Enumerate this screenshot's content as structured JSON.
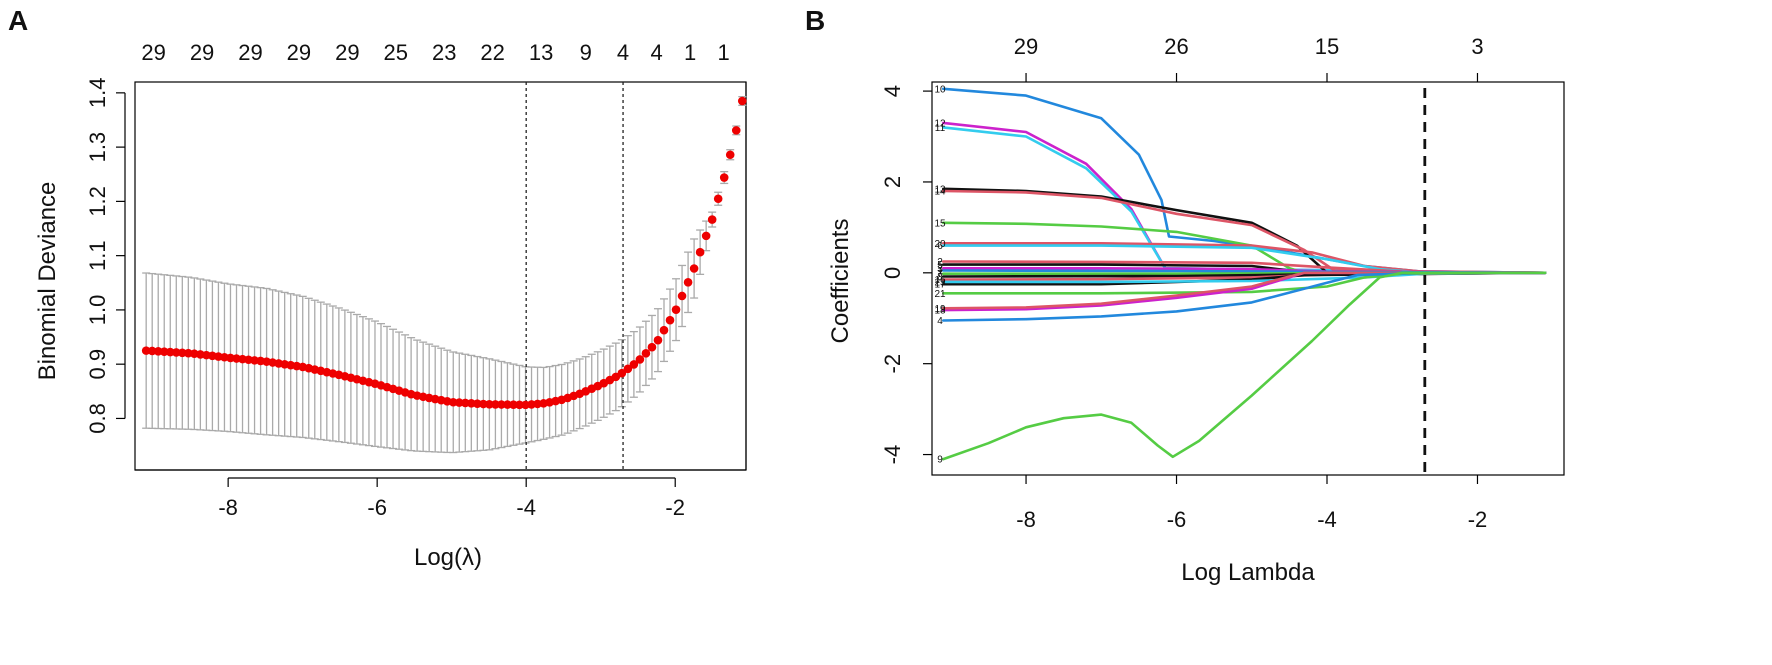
{
  "chart_data": [
    {
      "panel": "A",
      "type": "scatter",
      "title": "",
      "xlabel": "Log(λ)",
      "ylabel": "Binomial Deviance",
      "xlim": [
        -9.25,
        -1.05
      ],
      "ylim": [
        0.705,
        1.42
      ],
      "xticks": [
        -8,
        -6,
        -4,
        -2
      ],
      "xtick_labels": [
        "-8",
        "-6",
        "-4",
        "-2"
      ],
      "yticks": [
        0.8,
        0.9,
        1.0,
        1.1,
        1.2,
        1.3,
        1.4
      ],
      "ytick_labels": [
        "0.8",
        "0.9",
        "1.0",
        "1.1",
        "1.2",
        "1.3",
        "1.4"
      ],
      "top_axis": {
        "x": [
          -9.0,
          -8.35,
          -7.7,
          -7.05,
          -6.4,
          -5.75,
          -5.1,
          -4.45,
          -3.8,
          -3.2,
          -2.7,
          -2.25,
          -1.8,
          -1.35
        ],
        "labels": [
          "29",
          "29",
          "29",
          "29",
          "29",
          "25",
          "23",
          "22",
          "13",
          "9",
          "4",
          "4",
          "1",
          "1"
        ]
      },
      "vlines": [
        -4.0,
        -2.7
      ],
      "error_color": "#aaaaaa",
      "point_color": "#ee0000",
      "curve_knots": [
        [
          -9.1,
          0.925,
          0.782
        ],
        [
          -8.5,
          0.92,
          0.78
        ],
        [
          -8.0,
          0.912,
          0.776
        ],
        [
          -7.5,
          0.905,
          0.77
        ],
        [
          -7.0,
          0.895,
          0.765
        ],
        [
          -6.5,
          0.88,
          0.757
        ],
        [
          -6.0,
          0.863,
          0.748
        ],
        [
          -5.5,
          0.843,
          0.74
        ],
        [
          -5.0,
          0.83,
          0.737
        ],
        [
          -4.5,
          0.826,
          0.742
        ],
        [
          -4.0,
          0.825,
          0.755
        ],
        [
          -3.75,
          0.828,
          0.762
        ],
        [
          -3.5,
          0.835,
          0.77
        ],
        [
          -3.25,
          0.847,
          0.783
        ],
        [
          -3.0,
          0.862,
          0.799
        ],
        [
          -2.75,
          0.88,
          0.818
        ],
        [
          -2.5,
          0.905,
          0.845
        ],
        [
          -2.25,
          0.94,
          0.882
        ],
        [
          -2.0,
          0.997,
          0.94
        ],
        [
          -1.75,
          1.075,
          1.02
        ],
        [
          -1.5,
          1.168,
          1.155
        ],
        [
          -1.35,
          1.24,
          1.229
        ],
        [
          -1.2,
          1.318,
          1.31
        ],
        [
          -1.1,
          1.385,
          1.377
        ]
      ],
      "n_points": 100
    },
    {
      "panel": "B",
      "type": "line",
      "title": "",
      "xlabel": "Log Lambda",
      "ylabel": "Coefficients",
      "xlim": [
        -9.25,
        -0.85
      ],
      "ylim": [
        -4.45,
        4.2
      ],
      "xticks": [
        -8,
        -6,
        -4,
        -2
      ],
      "xtick_labels": [
        "-8",
        "-6",
        "-4",
        "-2"
      ],
      "yticks": [
        -4,
        -2,
        0,
        2,
        4
      ],
      "ytick_labels": [
        "-4",
        "-2",
        "0",
        "2",
        "4"
      ],
      "top_axis": {
        "x": [
          -8,
          -6,
          -4,
          -2
        ],
        "labels": [
          "29",
          "26",
          "15",
          "3"
        ]
      },
      "vline": -2.7,
      "series": [
        {
          "name": "10",
          "color": "#2288dd",
          "points": [
            [
              -9.1,
              4.05
            ],
            [
              -8.0,
              3.9
            ],
            [
              -7.0,
              3.4
            ],
            [
              -6.5,
              2.6
            ],
            [
              -6.2,
              1.6
            ],
            [
              -6.1,
              0.8
            ],
            [
              -5.5,
              0.7
            ],
            [
              -4.5,
              0.45
            ],
            [
              -3.5,
              0.15
            ],
            [
              -2.7,
              0.02
            ],
            [
              -1.1,
              0.0
            ]
          ]
        },
        {
          "name": "12",
          "color": "#cc22cc",
          "points": [
            [
              -9.1,
              3.3
            ],
            [
              -8.0,
              3.1
            ],
            [
              -7.2,
              2.4
            ],
            [
              -6.6,
              1.4
            ],
            [
              -6.15,
              0.1
            ],
            [
              -1.1,
              0.0
            ]
          ]
        },
        {
          "name": "11",
          "color": "#33ccee",
          "points": [
            [
              -9.1,
              3.2
            ],
            [
              -8.0,
              3.0
            ],
            [
              -7.2,
              2.3
            ],
            [
              -6.6,
              1.35
            ],
            [
              -6.15,
              0.1
            ],
            [
              -1.1,
              0.0
            ]
          ]
        },
        {
          "name": "13",
          "color": "#111111",
          "points": [
            [
              -9.1,
              1.85
            ],
            [
              -8.0,
              1.8
            ],
            [
              -7.0,
              1.68
            ],
            [
              -6.0,
              1.38
            ],
            [
              -5.0,
              1.1
            ],
            [
              -4.4,
              0.6
            ],
            [
              -4.0,
              0.0
            ],
            [
              -1.1,
              0.0
            ]
          ]
        },
        {
          "name": "14",
          "color": "#dd5566",
          "points": [
            [
              -9.1,
              1.8
            ],
            [
              -8.0,
              1.77
            ],
            [
              -7.0,
              1.65
            ],
            [
              -6.0,
              1.3
            ],
            [
              -5.0,
              1.05
            ],
            [
              -4.3,
              0.5
            ],
            [
              -3.9,
              0.05
            ],
            [
              -1.1,
              0.0
            ]
          ]
        },
        {
          "name": "15",
          "color": "#55cc44",
          "points": [
            [
              -9.1,
              1.1
            ],
            [
              -8.0,
              1.08
            ],
            [
              -7.0,
              1.02
            ],
            [
              -6.0,
              0.9
            ],
            [
              -5.0,
              0.6
            ],
            [
              -4.5,
              0.1
            ],
            [
              -4.3,
              0.0
            ],
            [
              -1.1,
              0.0
            ]
          ]
        },
        {
          "name": "20",
          "color": "#dd5566",
          "points": [
            [
              -9.1,
              0.65
            ],
            [
              -7.0,
              0.65
            ],
            [
              -5.0,
              0.6
            ],
            [
              -4.2,
              0.45
            ],
            [
              -3.5,
              0.15
            ],
            [
              -2.7,
              0.02
            ],
            [
              -1.1,
              0.0
            ]
          ]
        },
        {
          "name": "6",
          "color": "#33ccee",
          "points": [
            [
              -9.1,
              0.6
            ],
            [
              -7.0,
              0.6
            ],
            [
              -5.0,
              0.55
            ],
            [
              -4.0,
              0.3
            ],
            [
              -3.3,
              0.08
            ],
            [
              -2.7,
              0.0
            ],
            [
              -1.1,
              0.0
            ]
          ]
        },
        {
          "name": "2",
          "color": "#dd5566",
          "points": [
            [
              -9.1,
              0.25
            ],
            [
              -7.0,
              0.24
            ],
            [
              -5.0,
              0.22
            ],
            [
              -4.0,
              0.12
            ],
            [
              -3.0,
              0.03
            ],
            [
              -1.1,
              0.0
            ]
          ]
        },
        {
          "name": "5",
          "color": "#111111",
          "points": [
            [
              -9.1,
              0.18
            ],
            [
              -7.0,
              0.18
            ],
            [
              -5.0,
              0.15
            ],
            [
              -4.5,
              0.05
            ],
            [
              -4.3,
              0.0
            ],
            [
              -1.1,
              0.0
            ]
          ]
        },
        {
          "name": "3",
          "color": "#cc22cc",
          "points": [
            [
              -9.1,
              0.1
            ],
            [
              -7.0,
              0.1
            ],
            [
              -5.0,
              0.08
            ],
            [
              -4.0,
              0.03
            ],
            [
              -1.1,
              0.0
            ]
          ]
        },
        {
          "name": "1",
          "color": "#2288dd",
          "points": [
            [
              -9.1,
              0.05
            ],
            [
              -6.0,
              0.04
            ],
            [
              -4.0,
              0.02
            ],
            [
              -1.1,
              0.0
            ]
          ]
        },
        {
          "name": "7",
          "color": "#55cc44",
          "points": [
            [
              -9.1,
              -0.02
            ],
            [
              -6.0,
              -0.02
            ],
            [
              -4.0,
              -0.01
            ],
            [
              -1.1,
              0.0
            ]
          ]
        },
        {
          "name": "8",
          "color": "#111111",
          "points": [
            [
              -9.1,
              -0.08
            ],
            [
              -6.0,
              -0.07
            ],
            [
              -4.0,
              -0.03
            ],
            [
              -1.1,
              0.0
            ]
          ]
        },
        {
          "name": "16",
          "color": "#dd5566",
          "points": [
            [
              -9.1,
              -0.15
            ],
            [
              -7.0,
              -0.14
            ],
            [
              -5.0,
              -0.1
            ],
            [
              -4.0,
              -0.04
            ],
            [
              -1.1,
              0.0
            ]
          ]
        },
        {
          "name": "17",
          "color": "#111111",
          "points": [
            [
              -9.1,
              -0.25
            ],
            [
              -7.0,
              -0.25
            ],
            [
              -6.0,
              -0.2
            ],
            [
              -5.0,
              -0.15
            ],
            [
              -4.3,
              -0.05
            ],
            [
              -1.1,
              0.0
            ]
          ]
        },
        {
          "name": "23",
          "color": "#33ccee",
          "points": [
            [
              -9.1,
              -0.2
            ],
            [
              -7.0,
              -0.2
            ],
            [
              -5.0,
              -0.18
            ],
            [
              -3.5,
              -0.1
            ],
            [
              -2.7,
              -0.02
            ],
            [
              -1.1,
              0.0
            ]
          ]
        },
        {
          "name": "21",
          "color": "#55cc44",
          "points": [
            [
              -9.1,
              -0.45
            ],
            [
              -7.0,
              -0.45
            ],
            [
              -5.0,
              -0.42
            ],
            [
              -4.0,
              -0.3
            ],
            [
              -3.5,
              -0.1
            ],
            [
              -3.0,
              -0.02
            ],
            [
              -1.1,
              0.0
            ]
          ]
        },
        {
          "name": "18",
          "color": "#cc22cc",
          "points": [
            [
              -9.1,
              -0.82
            ],
            [
              -8.0,
              -0.8
            ],
            [
              -7.0,
              -0.72
            ],
            [
              -6.0,
              -0.55
            ],
            [
              -5.0,
              -0.35
            ],
            [
              -4.5,
              -0.1
            ],
            [
              -4.3,
              0.0
            ],
            [
              -1.1,
              0.0
            ]
          ]
        },
        {
          "name": "19",
          "color": "#dd5566",
          "points": [
            [
              -9.1,
              -0.78
            ],
            [
              -8.0,
              -0.76
            ],
            [
              -7.0,
              -0.68
            ],
            [
              -6.0,
              -0.5
            ],
            [
              -5.0,
              -0.3
            ],
            [
              -4.5,
              -0.08
            ],
            [
              -4.3,
              0.0
            ],
            [
              -1.1,
              0.0
            ]
          ]
        },
        {
          "name": "4",
          "color": "#2288dd",
          "points": [
            [
              -9.1,
              -1.05
            ],
            [
              -8.0,
              -1.02
            ],
            [
              -7.0,
              -0.96
            ],
            [
              -6.0,
              -0.85
            ],
            [
              -5.0,
              -0.65
            ],
            [
              -4.0,
              -0.22
            ],
            [
              -3.6,
              -0.05
            ],
            [
              -2.7,
              0.0
            ],
            [
              -1.1,
              0.0
            ]
          ]
        },
        {
          "name": "9",
          "color": "#55cc44",
          "points": [
            [
              -9.1,
              -4.1
            ],
            [
              -8.5,
              -3.75
            ],
            [
              -8.0,
              -3.4
            ],
            [
              -7.5,
              -3.2
            ],
            [
              -7.0,
              -3.12
            ],
            [
              -6.6,
              -3.3
            ],
            [
              -6.25,
              -3.8
            ],
            [
              -6.05,
              -4.05
            ],
            [
              -5.7,
              -3.7
            ],
            [
              -5.0,
              -2.7
            ],
            [
              -4.2,
              -1.5
            ],
            [
              -3.7,
              -0.7
            ],
            [
              -3.3,
              -0.1
            ],
            [
              -3.0,
              0.0
            ],
            [
              -1.1,
              0.0
            ]
          ]
        }
      ]
    }
  ]
}
